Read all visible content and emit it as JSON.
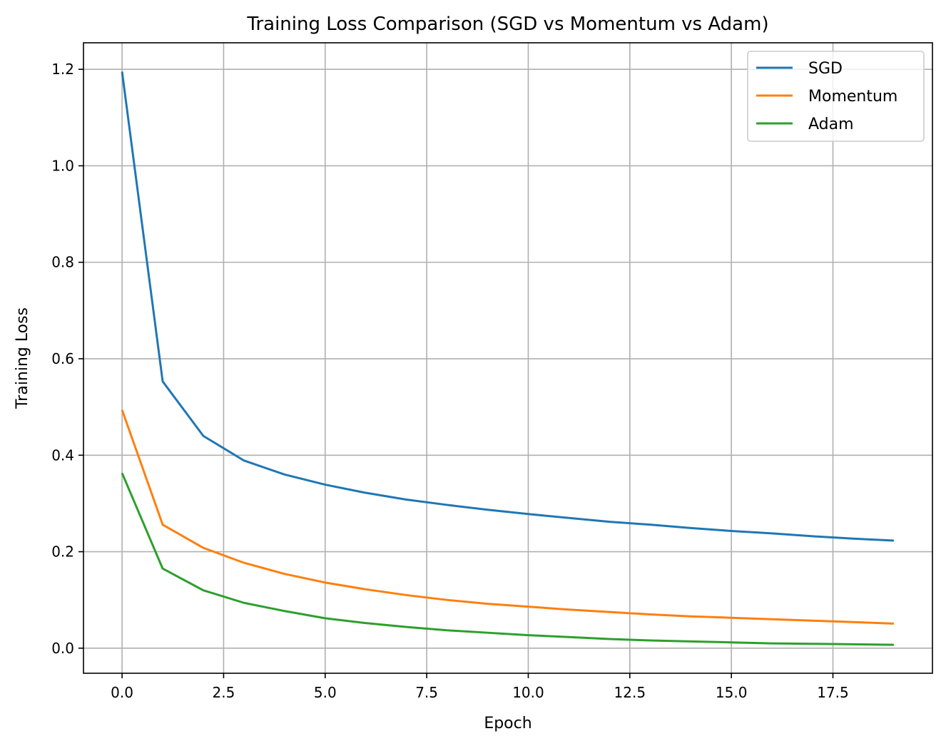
{
  "chart_data": {
    "type": "line",
    "title": "Training Loss Comparison (SGD vs Momentum vs Adam)",
    "xlabel": "Epoch",
    "ylabel": "Training Loss",
    "xlim": [
      -0.95,
      19.95
    ],
    "ylim": [
      -0.052,
      1.255
    ],
    "xticks": [
      0.0,
      2.5,
      5.0,
      7.5,
      10.0,
      12.5,
      15.0,
      17.5
    ],
    "xtick_labels": [
      "0.0",
      "2.5",
      "5.0",
      "7.5",
      "10.0",
      "12.5",
      "15.0",
      "17.5"
    ],
    "yticks": [
      0.0,
      0.2,
      0.4,
      0.6,
      0.8,
      1.0,
      1.2
    ],
    "ytick_labels": [
      "0.0",
      "0.2",
      "0.4",
      "0.6",
      "0.8",
      "1.0",
      "1.2"
    ],
    "grid": true,
    "legend_position": "top-right",
    "x": [
      0,
      1,
      2,
      3,
      4,
      5,
      6,
      7,
      8,
      9,
      10,
      11,
      12,
      13,
      14,
      15,
      16,
      17,
      18,
      19
    ],
    "series": [
      {
        "name": "SGD",
        "color": "#1f77b4",
        "values": [
          1.195,
          0.553,
          0.44,
          0.389,
          0.36,
          0.339,
          0.322,
          0.308,
          0.297,
          0.287,
          0.278,
          0.27,
          0.262,
          0.256,
          0.249,
          0.243,
          0.238,
          0.232,
          0.227,
          0.223
        ]
      },
      {
        "name": "Momentum",
        "color": "#ff7f0e",
        "values": [
          0.494,
          0.256,
          0.208,
          0.177,
          0.154,
          0.136,
          0.122,
          0.11,
          0.1,
          0.092,
          0.086,
          0.08,
          0.075,
          0.07,
          0.066,
          0.063,
          0.06,
          0.057,
          0.054,
          0.051
        ]
      },
      {
        "name": "Adam",
        "color": "#2ca02c",
        "values": [
          0.363,
          0.165,
          0.12,
          0.094,
          0.077,
          0.062,
          0.052,
          0.044,
          0.037,
          0.032,
          0.027,
          0.023,
          0.019,
          0.016,
          0.014,
          0.012,
          0.01,
          0.009,
          0.008,
          0.007
        ]
      }
    ]
  }
}
